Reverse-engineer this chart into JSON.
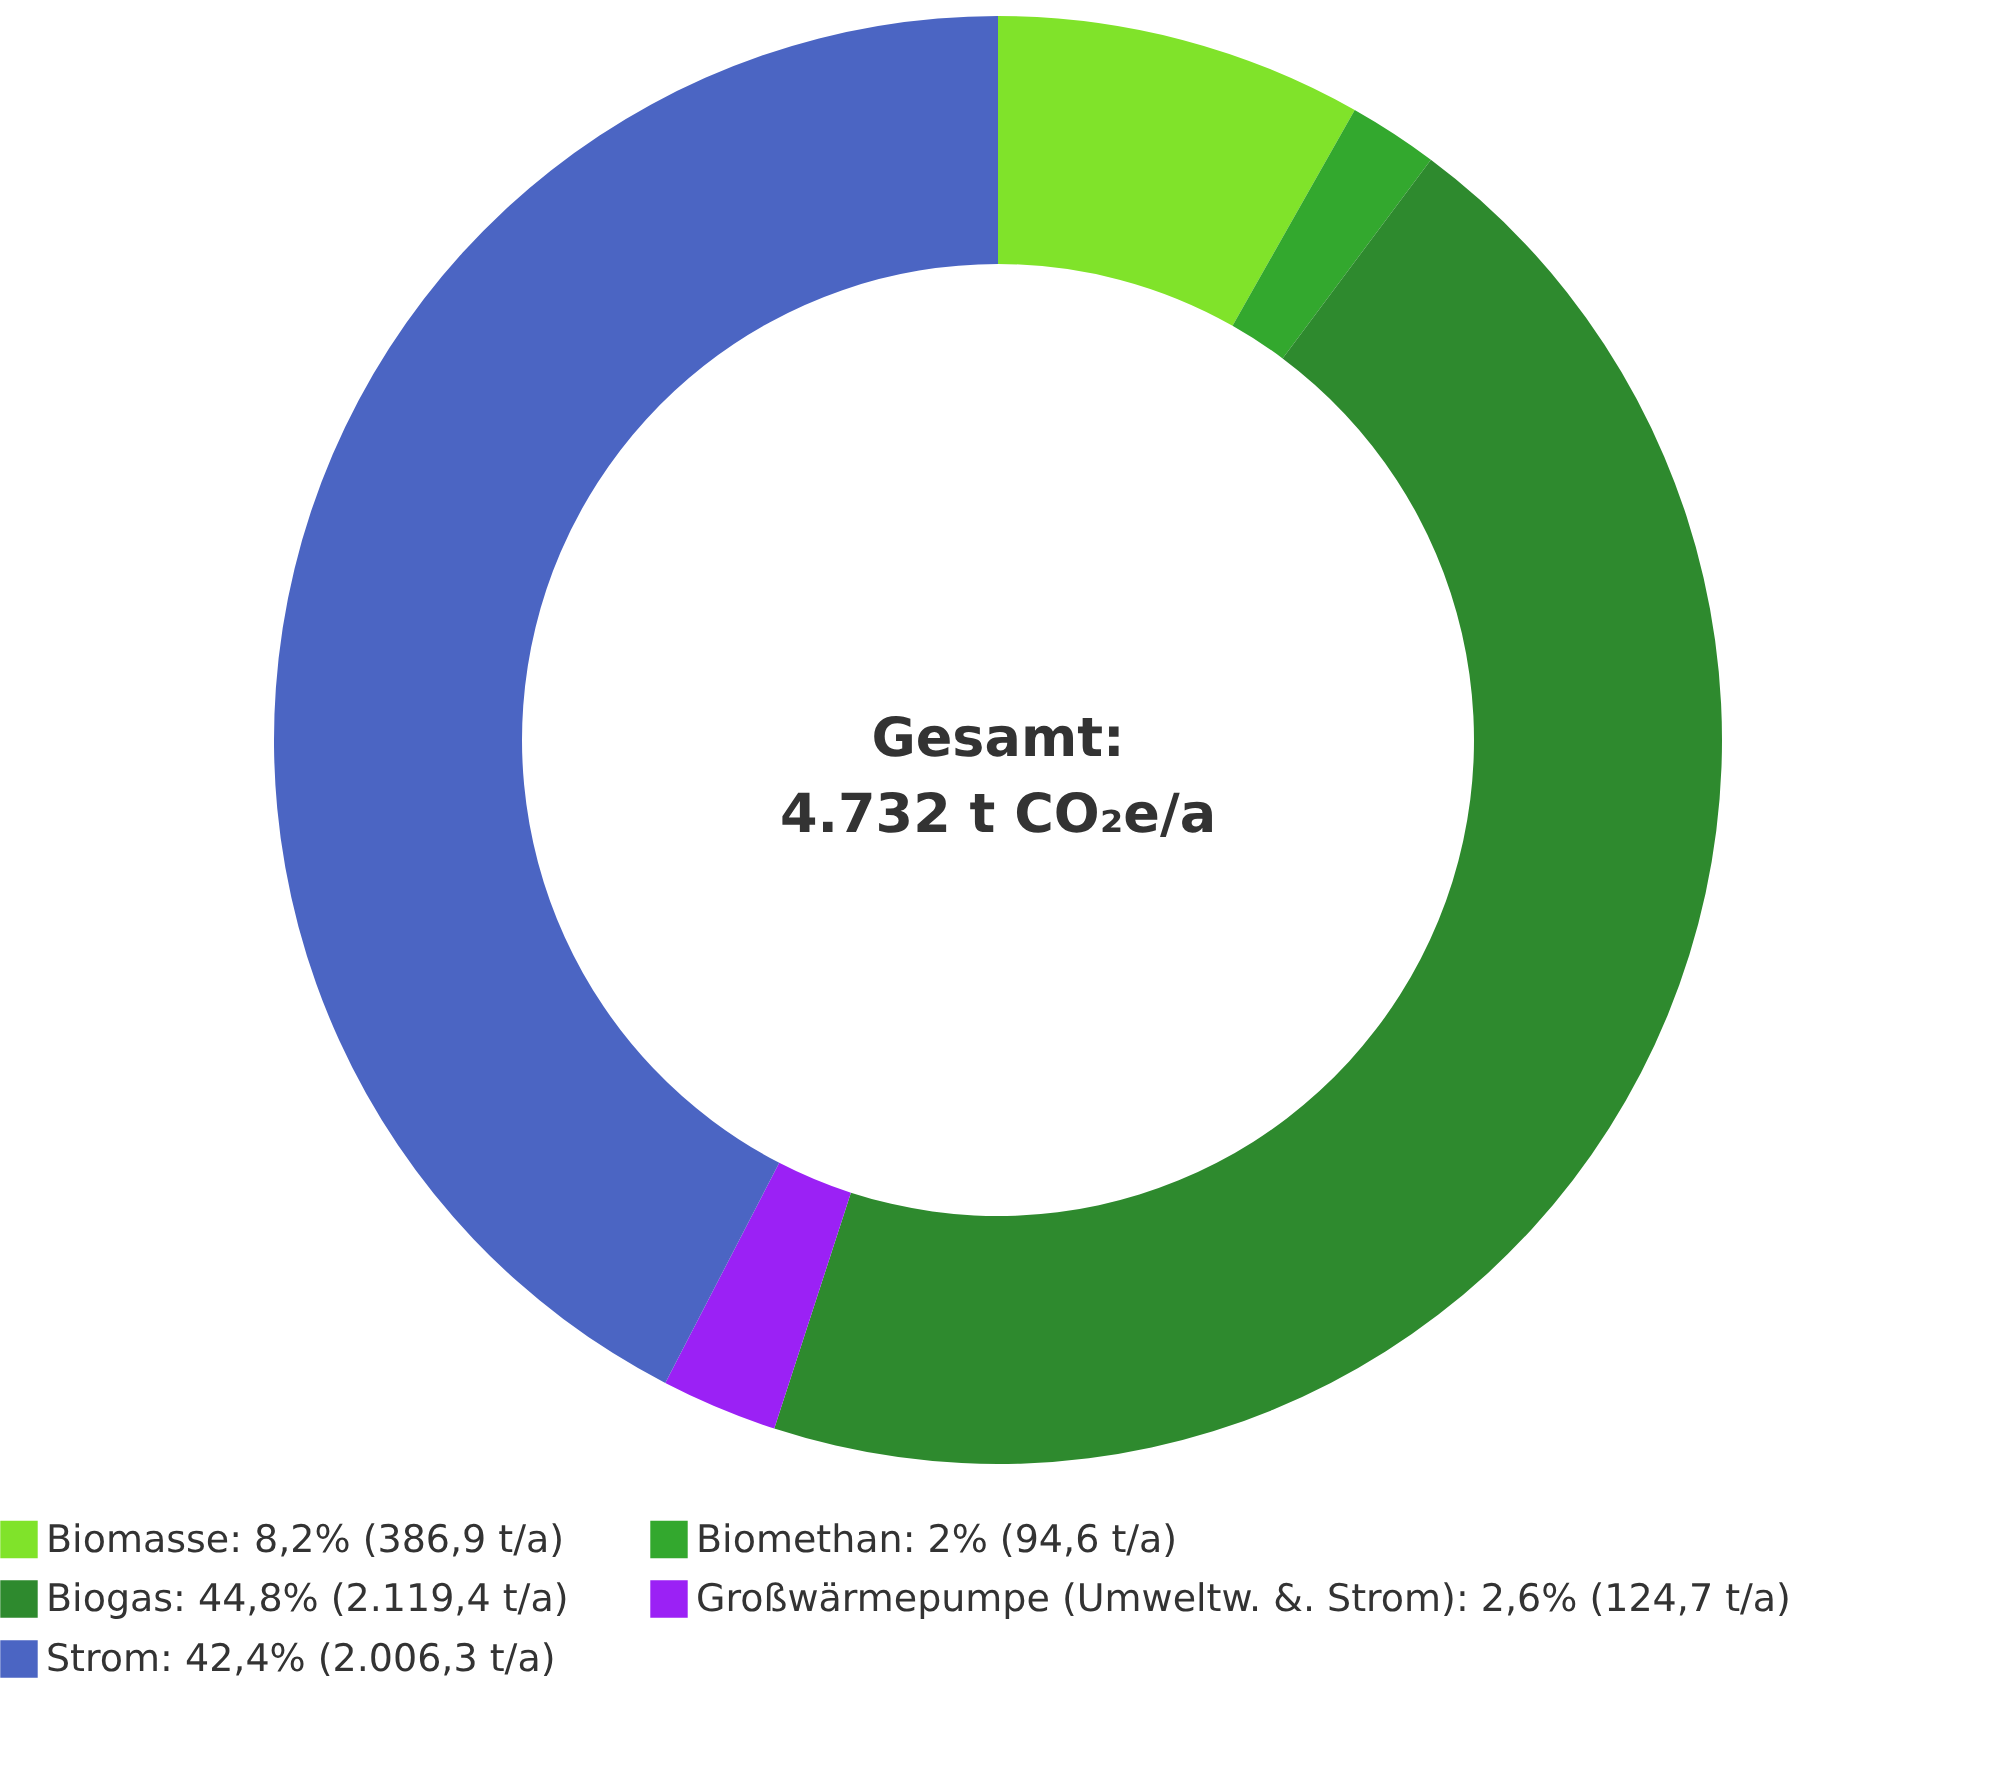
{
  "chart_data": {
    "type": "donut",
    "title": "Gesamt:\n4.732 t CO₂e/a",
    "categories": [
      "Biomasse: 8,2% (386,9 t/a)",
      "Biomethan: 2% (94,6 t/a)",
      "Biogas: 44,8% (2.119,4 t/a)",
      "Großwärmepumpe (Umweltw. &. Strom): 2,6% (124,7 t/a)",
      "Strom: 42,4% (2.006,3 t/a)"
    ],
    "values": [
      8.2,
      2,
      44.8,
      2.6,
      42.4
    ],
    "colors": [
      "#80e32a",
      "#33a82e",
      "#2e8a2e",
      "#9b21f5",
      "#4b65c3"
    ],
    "legend": "bottom"
  }
}
